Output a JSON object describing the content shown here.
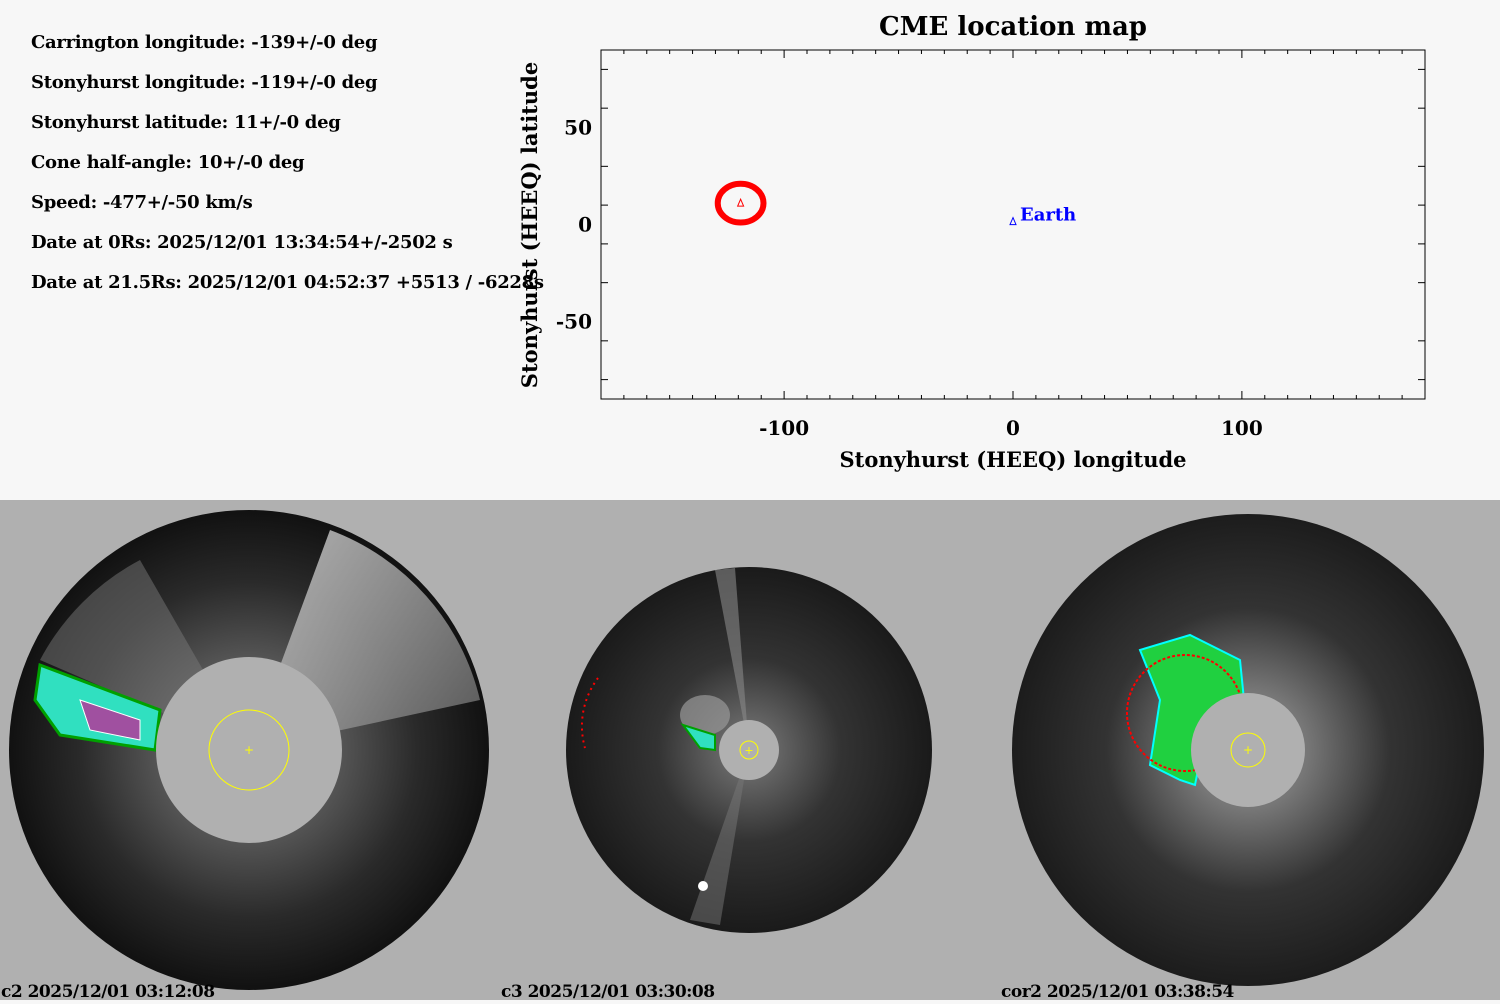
{
  "info": {
    "lines": [
      "Carrington longitude: -139+/-0 deg",
      "Stonyhurst longitude: -119+/-0 deg",
      "Stonyhurst latitude: 11+/-0 deg",
      "Cone half-angle: 10+/-0 deg",
      "Speed: -477+/-50 km/s",
      "Date at 0Rs: 2025/12/01 13:34:54+/-2502 s",
      "Date at 21.5Rs: 2025/12/01 04:52:37 +5513 / -6228s"
    ]
  },
  "chart_data": {
    "type": "scatter",
    "title": "CME location map",
    "xlabel": "Stonyhurst (HEEQ) longitude",
    "ylabel": "Stonyhurst (HEEQ) latitude",
    "xlim": [
      -180,
      180
    ],
    "ylim": [
      -90,
      90
    ],
    "xticks": [
      -100,
      0,
      100
    ],
    "xtick_labels": [
      "-100",
      "0",
      "100"
    ],
    "yticks": [
      50,
      0,
      -50
    ],
    "ytick_labels": [
      "50",
      "0",
      "-50"
    ],
    "grid": false,
    "points": [
      {
        "name": "CME",
        "x": -119,
        "y": 11,
        "color": "#ff0000",
        "cone_half_angle": 10
      },
      {
        "name": "Earth",
        "label": "Earth",
        "x": 0,
        "y": 1.5,
        "color": "#0000ff"
      }
    ]
  },
  "images": [
    {
      "label": "c2 2025/12/01 03:12:08"
    },
    {
      "label": "c3 2025/12/01 03:30:08"
    },
    {
      "label": "cor2 2025/12/01 03:38:54"
    }
  ],
  "colors": {
    "cme": "#ff0000",
    "earth": "#0000ff",
    "sun_marker": "#ffff00",
    "occulter": "#b0b0b0"
  }
}
